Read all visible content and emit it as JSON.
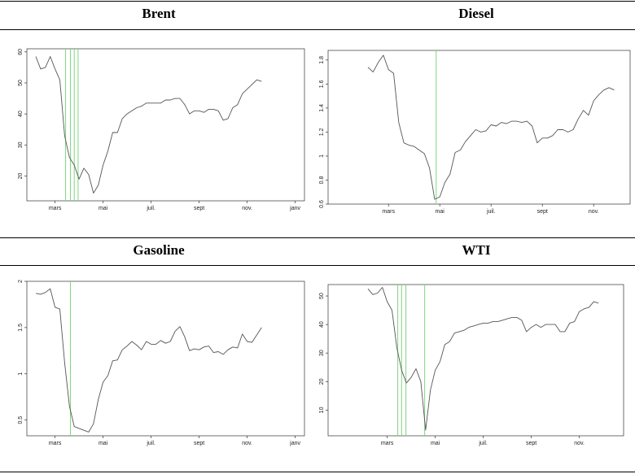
{
  "colors": {
    "line": "#555555",
    "marker": "#7fd67f",
    "axis": "#333333",
    "rule": "#000000"
  },
  "x_tick_labels": [
    "mars",
    "mai",
    "juil.",
    "sept",
    "nov.",
    "janv"
  ],
  "chart_data": [
    {
      "type": "line",
      "title": "Brent",
      "xlabel": "",
      "ylabel": "",
      "x_range": [
        0,
        8
      ],
      "xticks": [
        0.4,
        1.4,
        2.4,
        3.4,
        4.4,
        5.4
      ],
      "ylim": [
        12,
        61
      ],
      "yticks": [
        20,
        30,
        40,
        50,
        60
      ],
      "series": [
        {
          "values": [
            [
              0.0,
              58.5
            ],
            [
              0.1,
              54.5
            ],
            [
              0.2,
              55
            ],
            [
              0.3,
              58.5
            ],
            [
              0.4,
              54.5
            ],
            [
              0.5,
              51
            ],
            [
              0.6,
              33
            ],
            [
              0.7,
              26
            ],
            [
              0.8,
              23.5
            ],
            [
              0.9,
              19
            ],
            [
              1.0,
              22.5
            ],
            [
              1.1,
              20.5
            ],
            [
              1.2,
              14.5
            ],
            [
              1.3,
              17
            ],
            [
              1.4,
              23.5
            ],
            [
              1.5,
              28
            ],
            [
              1.6,
              34
            ],
            [
              1.7,
              34
            ],
            [
              1.8,
              38.5
            ],
            [
              1.9,
              40
            ],
            [
              2.0,
              41
            ],
            [
              2.1,
              42
            ],
            [
              2.2,
              42.5
            ],
            [
              2.3,
              43.5
            ],
            [
              2.4,
              43.5
            ],
            [
              2.5,
              43.5
            ],
            [
              2.6,
              43.5
            ],
            [
              2.7,
              44.5
            ],
            [
              2.8,
              44.5
            ],
            [
              2.9,
              45
            ],
            [
              3.0,
              45
            ],
            [
              3.1,
              43
            ],
            [
              3.2,
              40
            ],
            [
              3.3,
              41
            ],
            [
              3.4,
              41
            ],
            [
              3.5,
              40.5
            ],
            [
              3.6,
              41.5
            ],
            [
              3.7,
              41.5
            ],
            [
              3.8,
              41
            ],
            [
              3.9,
              38
            ],
            [
              4.0,
              38.5
            ],
            [
              4.1,
              42
            ],
            [
              4.2,
              43
            ],
            [
              4.3,
              46.5
            ],
            [
              4.4,
              48
            ],
            [
              4.5,
              49.5
            ],
            [
              4.6,
              51
            ],
            [
              4.7,
              50.5
            ]
          ]
        }
      ],
      "vertical_markers": [
        0.62,
        0.72,
        0.8,
        0.88
      ]
    },
    {
      "type": "line",
      "title": "Diesel",
      "xlabel": "",
      "ylabel": "",
      "x_range": [
        0,
        8
      ],
      "xticks": [
        0.4,
        1.4,
        2.4,
        3.4,
        4.4,
        5.4
      ],
      "ylim": [
        0.6,
        1.88
      ],
      "yticks": [
        0.6,
        0.8,
        1.0,
        1.2,
        1.4,
        1.6,
        1.8
      ],
      "series": [
        {
          "values": [
            [
              0.0,
              1.74
            ],
            [
              0.1,
              1.7
            ],
            [
              0.2,
              1.78
            ],
            [
              0.3,
              1.84
            ],
            [
              0.4,
              1.72
            ],
            [
              0.5,
              1.69
            ],
            [
              0.6,
              1.28
            ],
            [
              0.7,
              1.11
            ],
            [
              0.8,
              1.09
            ],
            [
              0.9,
              1.08
            ],
            [
              1.0,
              1.05
            ],
            [
              1.1,
              1.02
            ],
            [
              1.2,
              0.9
            ],
            [
              1.3,
              0.64
            ],
            [
              1.4,
              0.66
            ],
            [
              1.5,
              0.78
            ],
            [
              1.6,
              0.85
            ],
            [
              1.7,
              1.03
            ],
            [
              1.8,
              1.05
            ],
            [
              1.9,
              1.12
            ],
            [
              2.0,
              1.17
            ],
            [
              2.1,
              1.22
            ],
            [
              2.2,
              1.2
            ],
            [
              2.3,
              1.21
            ],
            [
              2.4,
              1.26
            ],
            [
              2.5,
              1.25
            ],
            [
              2.6,
              1.28
            ],
            [
              2.7,
              1.27
            ],
            [
              2.8,
              1.29
            ],
            [
              2.9,
              1.29
            ],
            [
              3.0,
              1.28
            ],
            [
              3.1,
              1.29
            ],
            [
              3.2,
              1.25
            ],
            [
              3.3,
              1.11
            ],
            [
              3.4,
              1.15
            ],
            [
              3.5,
              1.15
            ],
            [
              3.6,
              1.17
            ],
            [
              3.7,
              1.22
            ],
            [
              3.8,
              1.22
            ],
            [
              3.9,
              1.2
            ],
            [
              4.0,
              1.22
            ],
            [
              4.1,
              1.31
            ],
            [
              4.2,
              1.38
            ],
            [
              4.3,
              1.34
            ],
            [
              4.4,
              1.46
            ],
            [
              4.5,
              1.51
            ],
            [
              4.6,
              1.55
            ],
            [
              4.7,
              1.57
            ],
            [
              4.8,
              1.55
            ]
          ]
        }
      ],
      "vertical_markers": [
        1.33
      ]
    },
    {
      "type": "line",
      "title": "Gasoline",
      "xlabel": "",
      "ylabel": "",
      "x_range": [
        0,
        8
      ],
      "xticks": [
        0.4,
        1.4,
        2.4,
        3.4,
        4.4,
        5.4
      ],
      "ylim": [
        0.33,
        2.0
      ],
      "yticks": [
        0.5,
        1.0,
        1.5,
        2.0
      ],
      "series": [
        {
          "values": [
            [
              0.0,
              1.87
            ],
            [
              0.1,
              1.86
            ],
            [
              0.2,
              1.88
            ],
            [
              0.3,
              1.92
            ],
            [
              0.4,
              1.72
            ],
            [
              0.5,
              1.7
            ],
            [
              0.6,
              1.12
            ],
            [
              0.7,
              0.65
            ],
            [
              0.8,
              0.43
            ],
            [
              0.9,
              0.41
            ],
            [
              1.0,
              0.39
            ],
            [
              1.1,
              0.37
            ],
            [
              1.2,
              0.46
            ],
            [
              1.3,
              0.72
            ],
            [
              1.4,
              0.91
            ],
            [
              1.5,
              0.98
            ],
            [
              1.6,
              1.14
            ],
            [
              1.7,
              1.15
            ],
            [
              1.8,
              1.26
            ],
            [
              1.9,
              1.3
            ],
            [
              2.0,
              1.35
            ],
            [
              2.1,
              1.31
            ],
            [
              2.2,
              1.26
            ],
            [
              2.3,
              1.35
            ],
            [
              2.4,
              1.32
            ],
            [
              2.5,
              1.32
            ],
            [
              2.6,
              1.36
            ],
            [
              2.7,
              1.33
            ],
            [
              2.8,
              1.35
            ],
            [
              2.9,
              1.46
            ],
            [
              3.0,
              1.51
            ],
            [
              3.1,
              1.4
            ],
            [
              3.2,
              1.25
            ],
            [
              3.3,
              1.27
            ],
            [
              3.4,
              1.26
            ],
            [
              3.5,
              1.29
            ],
            [
              3.6,
              1.3
            ],
            [
              3.7,
              1.23
            ],
            [
              3.8,
              1.24
            ],
            [
              3.9,
              1.21
            ],
            [
              4.0,
              1.26
            ],
            [
              4.1,
              1.29
            ],
            [
              4.2,
              1.28
            ],
            [
              4.3,
              1.43
            ],
            [
              4.4,
              1.35
            ],
            [
              4.5,
              1.34
            ],
            [
              4.6,
              1.42
            ],
            [
              4.7,
              1.5
            ]
          ]
        }
      ],
      "vertical_markers": [
        0.72
      ]
    },
    {
      "type": "line",
      "title": "WTI",
      "xlabel": "",
      "ylabel": "",
      "x_range": [
        0,
        8
      ],
      "xticks": [
        0.4,
        1.4,
        2.4,
        3.4,
        4.4,
        5.4
      ],
      "ylim": [
        1,
        54
      ],
      "yticks": [
        10,
        20,
        30,
        40,
        50
      ],
      "series": [
        {
          "values": [
            [
              0.0,
              52.5
            ],
            [
              0.1,
              50.5
            ],
            [
              0.2,
              51
            ],
            [
              0.3,
              53
            ],
            [
              0.4,
              48
            ],
            [
              0.5,
              45
            ],
            [
              0.6,
              32
            ],
            [
              0.7,
              24
            ],
            [
              0.8,
              19.5
            ],
            [
              0.9,
              21.5
            ],
            [
              1.0,
              24.5
            ],
            [
              1.1,
              20
            ],
            [
              1.2,
              3
            ],
            [
              1.3,
              17
            ],
            [
              1.4,
              24
            ],
            [
              1.5,
              27
            ],
            [
              1.6,
              33
            ],
            [
              1.7,
              34
            ],
            [
              1.8,
              37
            ],
            [
              1.9,
              37.5
            ],
            [
              2.0,
              38
            ],
            [
              2.1,
              39
            ],
            [
              2.2,
              39.5
            ],
            [
              2.3,
              40
            ],
            [
              2.4,
              40.5
            ],
            [
              2.5,
              40.5
            ],
            [
              2.6,
              41
            ],
            [
              2.7,
              41
            ],
            [
              2.8,
              41.5
            ],
            [
              2.9,
              42
            ],
            [
              3.0,
              42.5
            ],
            [
              3.1,
              42.5
            ],
            [
              3.2,
              41.5
            ],
            [
              3.3,
              37.5
            ],
            [
              3.4,
              39
            ],
            [
              3.5,
              40
            ],
            [
              3.6,
              39
            ],
            [
              3.7,
              40
            ],
            [
              3.8,
              40
            ],
            [
              3.9,
              40
            ],
            [
              4.0,
              37.5
            ],
            [
              4.1,
              37.5
            ],
            [
              4.2,
              40.5
            ],
            [
              4.3,
              41
            ],
            [
              4.4,
              44.5
            ],
            [
              4.5,
              45.5
            ],
            [
              4.6,
              46
            ],
            [
              4.7,
              48
            ],
            [
              4.8,
              47.5
            ]
          ]
        }
      ],
      "vertical_markers": [
        0.62,
        0.7,
        0.79,
        1.18
      ]
    }
  ]
}
